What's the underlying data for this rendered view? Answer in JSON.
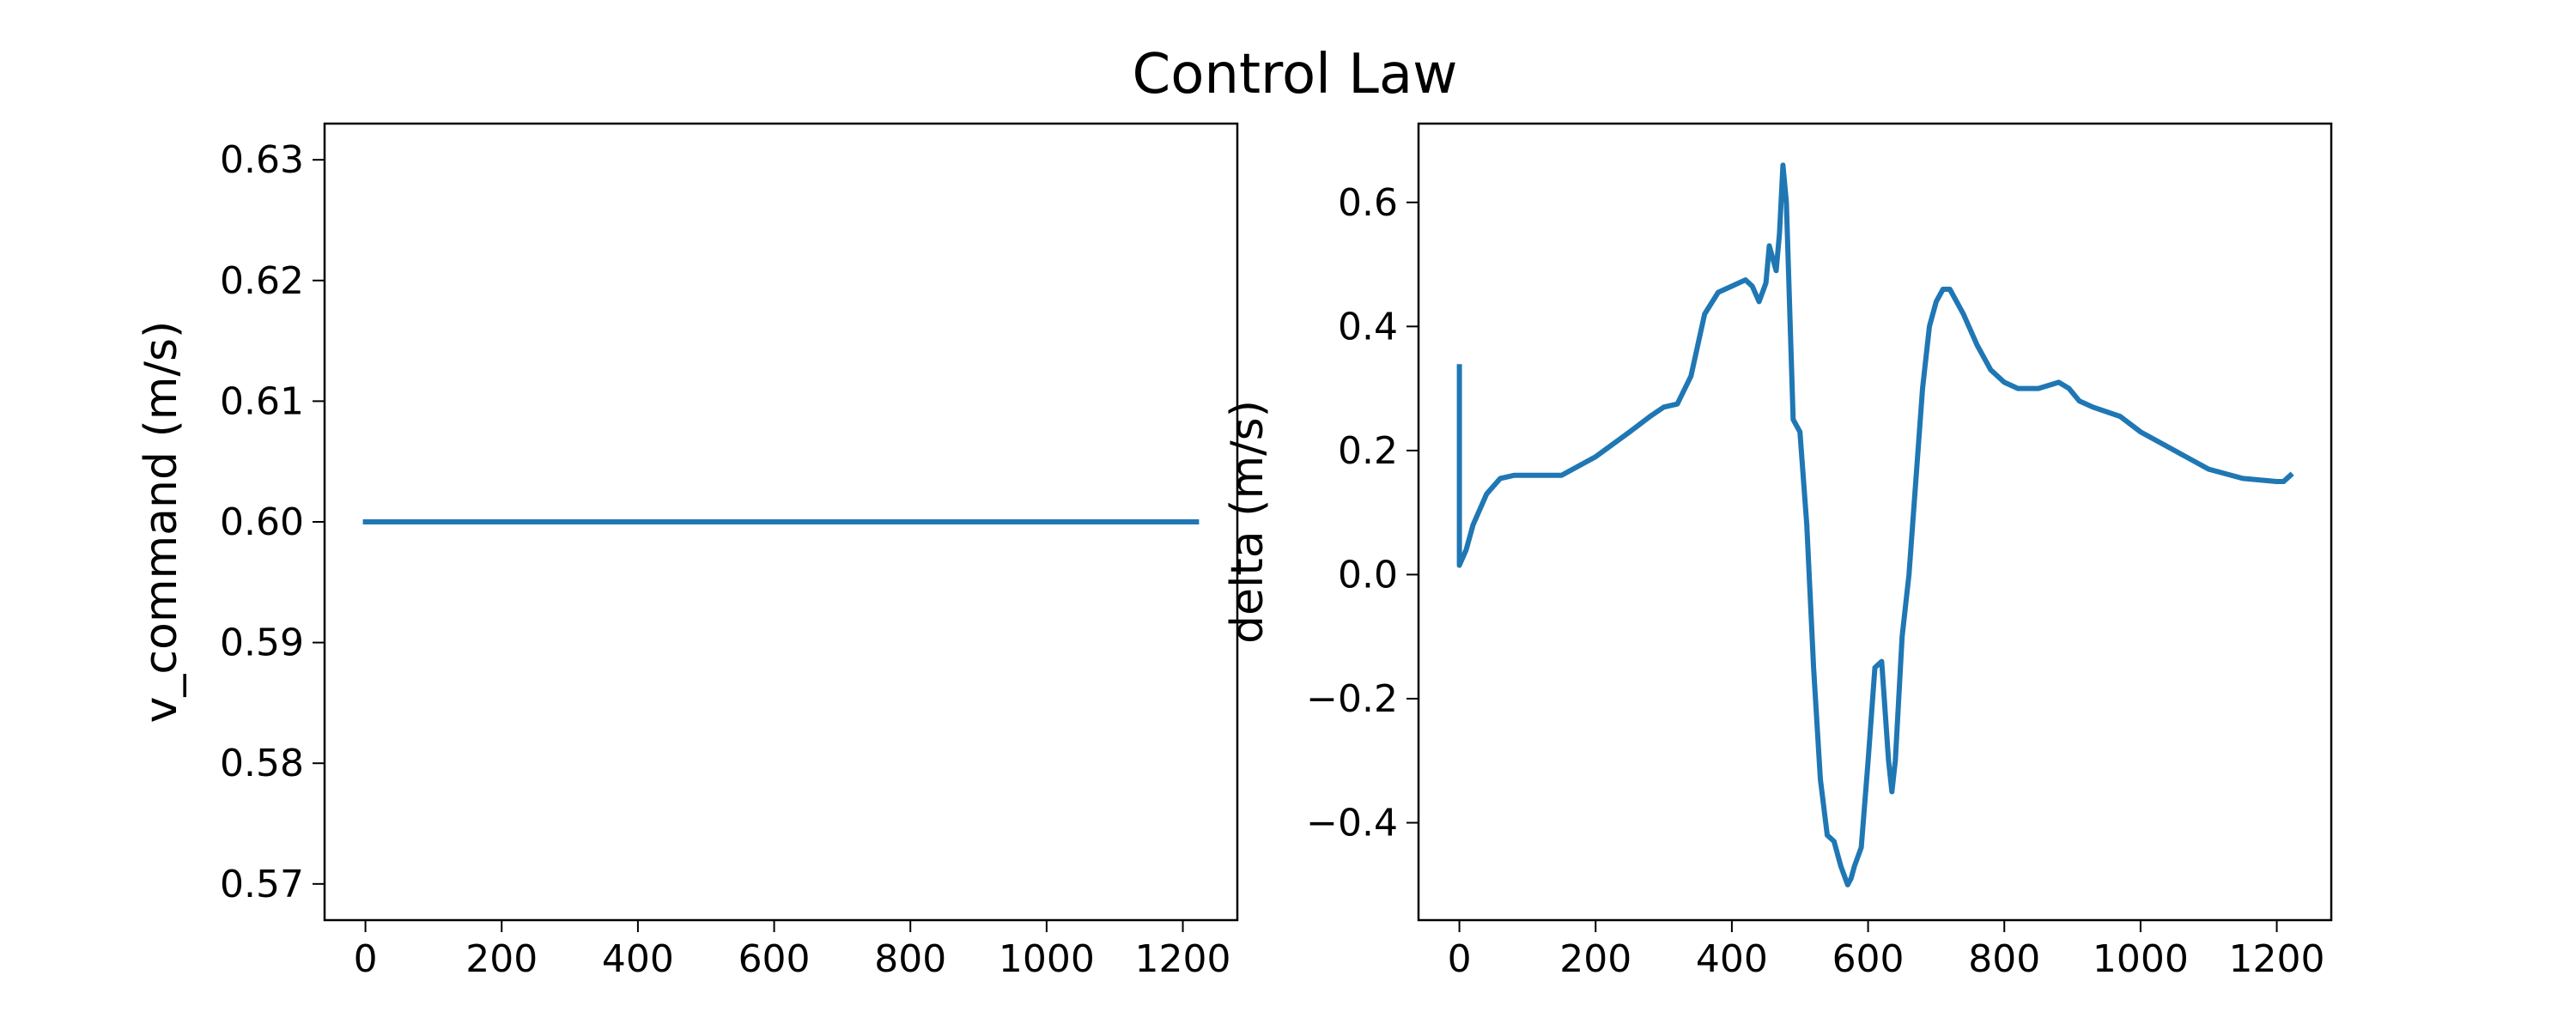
{
  "title": "Control Law",
  "chart_data": [
    {
      "type": "line",
      "xlabel": "",
      "ylabel": "v_command (m/s)",
      "xlim": [
        -60,
        1280
      ],
      "ylim": [
        0.567,
        0.633
      ],
      "xticks": [
        0,
        200,
        400,
        600,
        800,
        1000,
        1200
      ],
      "xtick_labels": [
        "0",
        "200",
        "400",
        "600",
        "800",
        "1000",
        "1200"
      ],
      "yticks": [
        0.57,
        0.58,
        0.59,
        0.6,
        0.61,
        0.62,
        0.63
      ],
      "ytick_labels": [
        "0.57",
        "0.58",
        "0.59",
        "0.60",
        "0.61",
        "0.62",
        "0.63"
      ],
      "grid": false,
      "color": "#1f77b4",
      "series": [
        {
          "x": [
            0,
            1220
          ],
          "y": [
            0.6,
            0.6
          ]
        }
      ]
    },
    {
      "type": "line",
      "xlabel": "",
      "ylabel": "delta (m/s)",
      "xlim": [
        -60,
        1280
      ],
      "ylim": [
        -0.557,
        0.727
      ],
      "xticks": [
        0,
        200,
        400,
        600,
        800,
        1000,
        1200
      ],
      "xtick_labels": [
        "0",
        "200",
        "400",
        "600",
        "800",
        "1000",
        "1200"
      ],
      "yticks": [
        -0.4,
        -0.2,
        0.0,
        0.2,
        0.4,
        0.6
      ],
      "ytick_labels": [
        "−0.4",
        "−0.2",
        "0.0",
        "0.2",
        "0.4",
        "0.6"
      ],
      "grid": false,
      "color": "#1f77b4",
      "series": [
        {
          "x": [
            0,
            0,
            10,
            20,
            40,
            60,
            80,
            100,
            150,
            200,
            250,
            280,
            300,
            320,
            340,
            360,
            380,
            400,
            420,
            430,
            440,
            450,
            455,
            460,
            465,
            470,
            475,
            480,
            490,
            500,
            510,
            520,
            530,
            540,
            550,
            560,
            570,
            575,
            580,
            590,
            600,
            610,
            620,
            630,
            635,
            640,
            650,
            660,
            670,
            680,
            690,
            700,
            710,
            720,
            740,
            760,
            780,
            800,
            820,
            850,
            880,
            895,
            910,
            930,
            970,
            1000,
            1050,
            1100,
            1150,
            1200,
            1210,
            1220
          ],
          "y": [
            0.335,
            0.015,
            0.04,
            0.08,
            0.13,
            0.155,
            0.16,
            0.16,
            0.16,
            0.19,
            0.23,
            0.255,
            0.27,
            0.275,
            0.32,
            0.42,
            0.455,
            0.465,
            0.475,
            0.465,
            0.44,
            0.47,
            0.53,
            0.51,
            0.49,
            0.55,
            0.66,
            0.6,
            0.25,
            0.23,
            0.08,
            -0.15,
            -0.33,
            -0.42,
            -0.43,
            -0.47,
            -0.5,
            -0.49,
            -0.47,
            -0.44,
            -0.3,
            -0.15,
            -0.14,
            -0.3,
            -0.35,
            -0.3,
            -0.1,
            0.0,
            0.15,
            0.3,
            0.4,
            0.44,
            0.46,
            0.46,
            0.42,
            0.37,
            0.33,
            0.31,
            0.3,
            0.3,
            0.31,
            0.3,
            0.28,
            0.27,
            0.255,
            0.23,
            0.2,
            0.17,
            0.155,
            0.15,
            0.15,
            0.16
          ]
        }
      ]
    }
  ]
}
